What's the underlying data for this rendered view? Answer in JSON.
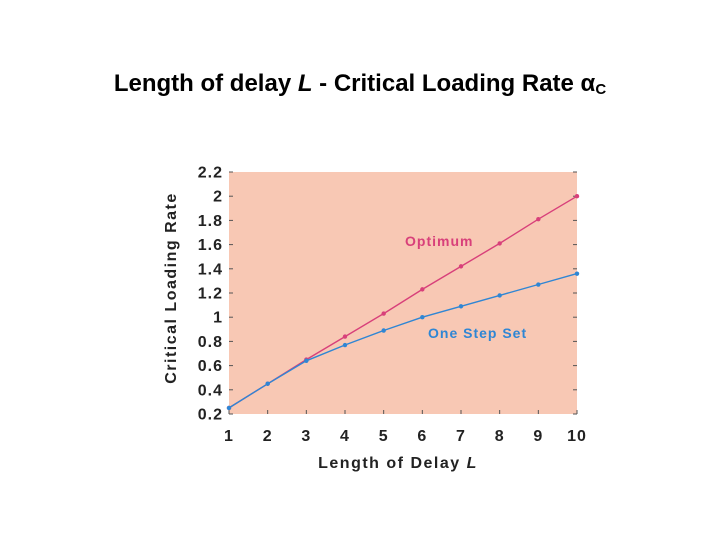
{
  "title": {
    "prefix": "Length of delay ",
    "variable": "L",
    "middle": "  -  Critical Loading Rate α",
    "subscript": "C"
  },
  "chart_data": {
    "type": "line",
    "xlabel_text": "Length of Delay ",
    "xlabel_var": "L",
    "ylabel": "Critical Loading Rate",
    "xlim": [
      1,
      10
    ],
    "ylim": [
      0.2,
      2.2
    ],
    "x_ticks": [
      1,
      2,
      3,
      4,
      5,
      6,
      7,
      8,
      9,
      10
    ],
    "y_ticks": [
      0.2,
      0.4,
      0.6,
      0.8,
      1,
      1.2,
      1.4,
      1.6,
      1.8,
      2,
      2.2
    ],
    "y_tick_labels": [
      "0.2",
      "0.4",
      "0.6",
      "0.8",
      "1",
      "1.2",
      "1.4",
      "1.6",
      "1.8",
      "2",
      "2.2"
    ],
    "grid": false,
    "plot_background": "#f8c8b4",
    "series": [
      {
        "name": "Optimum",
        "color": "#d8407a",
        "x": [
          1,
          2,
          3,
          4,
          5,
          6,
          7,
          8,
          9,
          10
        ],
        "y": [
          0.25,
          0.45,
          0.65,
          0.84,
          1.03,
          1.23,
          1.42,
          1.61,
          1.81,
          2.0
        ]
      },
      {
        "name": "One Step Set",
        "color": "#2f86d4",
        "x": [
          1,
          2,
          3,
          4,
          5,
          6,
          7,
          8,
          9,
          10
        ],
        "y": [
          0.25,
          0.45,
          0.64,
          0.77,
          0.89,
          1.0,
          1.09,
          1.18,
          1.27,
          1.36
        ]
      }
    ]
  }
}
